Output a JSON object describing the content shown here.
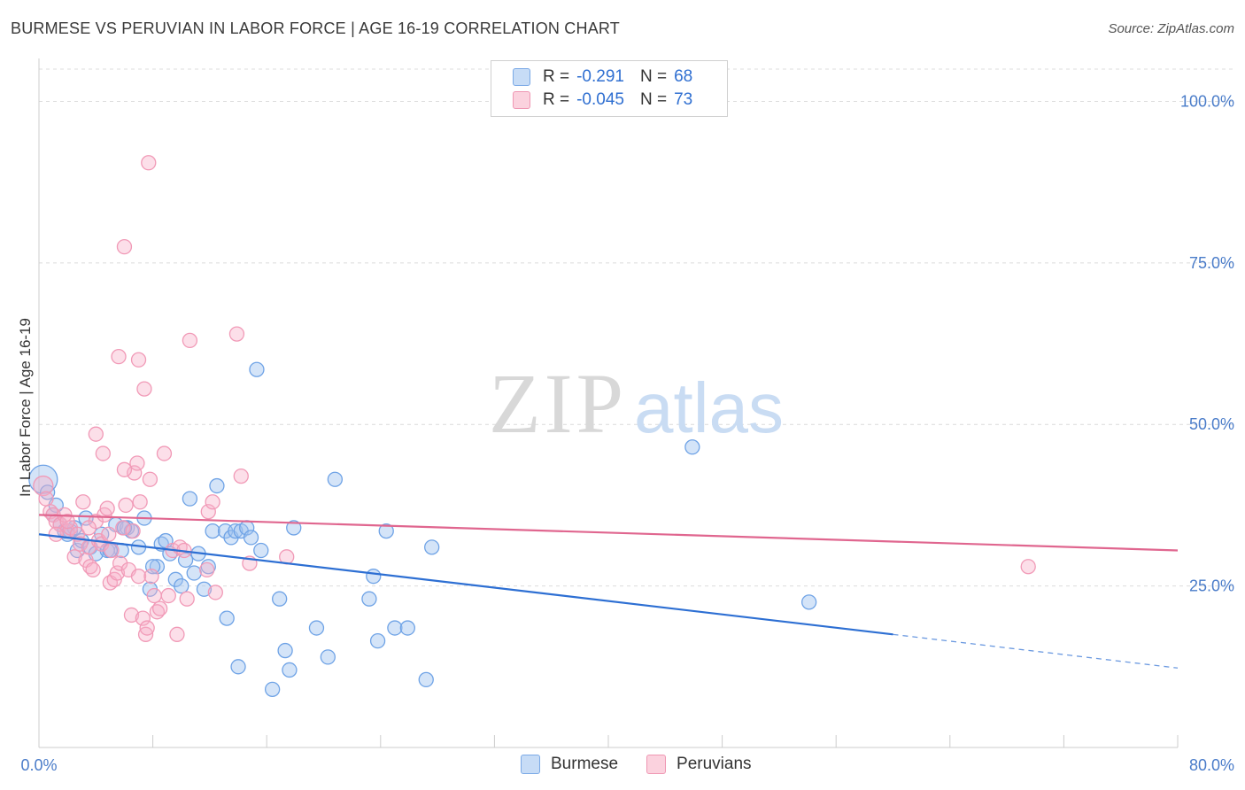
{
  "title": "BURMESE VS PERUVIAN IN LABOR FORCE | AGE 16-19 CORRELATION CHART",
  "source": "Source: ZipAtlas.com",
  "watermark": {
    "zip": "ZIP",
    "atlas": "atlas"
  },
  "legend": {
    "rows": [
      {
        "r_label": "R =",
        "r_value": "-0.291",
        "n_label": "N =",
        "n_value": "68",
        "color": "#a9c8f0"
      },
      {
        "r_label": "R =",
        "r_value": "-0.045",
        "n_label": "N =",
        "n_value": "73",
        "color": "#f7b8cb"
      }
    ]
  },
  "bottom_legend": [
    {
      "label": "Burmese",
      "color": "#a9c8f0"
    },
    {
      "label": "Peruvians",
      "color": "#f7b8cb"
    }
  ],
  "chart_data": {
    "type": "scatter",
    "title": "BURMESE VS PERUVIAN IN LABOR FORCE | AGE 16-19 CORRELATION CHART",
    "xlabel": "",
    "ylabel": "In Labor Force | Age 16-19",
    "xlim": [
      0,
      80
    ],
    "ylim": [
      0,
      105
    ],
    "x_tick_labels": [
      {
        "value": 0,
        "label": "0.0%"
      },
      {
        "value": 80,
        "label": "80.0%"
      }
    ],
    "y_tick_labels": [
      {
        "value": 25,
        "label": "25.0%"
      },
      {
        "value": 50,
        "label": "50.0%"
      },
      {
        "value": 75,
        "label": "75.0%"
      },
      {
        "value": 100,
        "label": "100.0%"
      }
    ],
    "series": [
      {
        "name": "Burmese",
        "color": "#6fa3e6",
        "trend": {
          "x0": 0,
          "y0": 33.0,
          "x1": 60,
          "y1": 17.5,
          "dash_to_x": 80,
          "dash_to_y": 12.3,
          "color": "#2d6fd3"
        },
        "points": [
          [
            0.3,
            41.5
          ],
          [
            0.6,
            39.5
          ],
          [
            1.0,
            36.0
          ],
          [
            1.2,
            37.5
          ],
          [
            1.5,
            34.5
          ],
          [
            1.8,
            33.5
          ],
          [
            2.2,
            33.5
          ],
          [
            2.5,
            34.0
          ],
          [
            2.7,
            30.5
          ],
          [
            3.0,
            32.0
          ],
          [
            3.3,
            35.5
          ],
          [
            3.6,
            31.0
          ],
          [
            4.0,
            30.0
          ],
          [
            4.4,
            33.0
          ],
          [
            4.8,
            30.5
          ],
          [
            5.4,
            34.5
          ],
          [
            5.8,
            30.5
          ],
          [
            6.2,
            34.0
          ],
          [
            6.5,
            33.5
          ],
          [
            7.0,
            31.0
          ],
          [
            7.4,
            35.5
          ],
          [
            7.8,
            24.5
          ],
          [
            8.3,
            28.0
          ],
          [
            8.6,
            31.5
          ],
          [
            8.9,
            32.0
          ],
          [
            9.2,
            30.0
          ],
          [
            9.6,
            26.0
          ],
          [
            10.0,
            25.0
          ],
          [
            10.3,
            29.0
          ],
          [
            10.6,
            38.5
          ],
          [
            10.9,
            27.0
          ],
          [
            11.2,
            30.0
          ],
          [
            11.6,
            24.5
          ],
          [
            11.9,
            28.0
          ],
          [
            12.2,
            33.5
          ],
          [
            12.5,
            40.5
          ],
          [
            13.1,
            33.5
          ],
          [
            13.5,
            32.5
          ],
          [
            13.2,
            20.0
          ],
          [
            13.8,
            33.5
          ],
          [
            14.2,
            33.5
          ],
          [
            14.6,
            34.0
          ],
          [
            14.9,
            32.5
          ],
          [
            15.3,
            58.5
          ],
          [
            15.6,
            30.5
          ],
          [
            16.4,
            9.0
          ],
          [
            16.9,
            23.0
          ],
          [
            17.3,
            15.0
          ],
          [
            17.6,
            12.0
          ],
          [
            17.9,
            34.0
          ],
          [
            19.5,
            18.5
          ],
          [
            20.3,
            14.0
          ],
          [
            20.8,
            41.5
          ],
          [
            23.2,
            23.0
          ],
          [
            23.5,
            26.5
          ],
          [
            23.8,
            16.5
          ],
          [
            24.4,
            33.5
          ],
          [
            25.0,
            18.5
          ],
          [
            25.9,
            18.5
          ],
          [
            27.2,
            10.5
          ],
          [
            27.6,
            31.0
          ],
          [
            14.0,
            12.5
          ],
          [
            8.0,
            28.0
          ],
          [
            6.0,
            34.0
          ],
          [
            5.0,
            30.5
          ],
          [
            45.9,
            46.5
          ],
          [
            54.1,
            22.5
          ],
          [
            2.0,
            33.0
          ]
        ]
      },
      {
        "name": "Peruvians",
        "color": "#f4a3bc",
        "trend": {
          "x0": 0,
          "y0": 36.0,
          "x1": 80,
          "y1": 30.5,
          "color": "#e0668f"
        },
        "points": [
          [
            0.3,
            40.5
          ],
          [
            0.5,
            38.5
          ],
          [
            0.8,
            36.5
          ],
          [
            1.0,
            36.0
          ],
          [
            1.2,
            35.0
          ],
          [
            1.5,
            34.5
          ],
          [
            1.8,
            36.0
          ],
          [
            2.0,
            33.5
          ],
          [
            2.2,
            34.0
          ],
          [
            2.5,
            29.5
          ],
          [
            2.7,
            33.0
          ],
          [
            2.9,
            31.5
          ],
          [
            3.1,
            38.0
          ],
          [
            3.3,
            29.0
          ],
          [
            3.5,
            31.0
          ],
          [
            3.6,
            28.0
          ],
          [
            3.8,
            27.5
          ],
          [
            4.0,
            35.0
          ],
          [
            4.2,
            32.0
          ],
          [
            4.4,
            31.5
          ],
          [
            4.6,
            36.0
          ],
          [
            4.8,
            37.0
          ],
          [
            4.9,
            33.0
          ],
          [
            5.0,
            25.5
          ],
          [
            5.1,
            30.5
          ],
          [
            5.3,
            26.0
          ],
          [
            5.5,
            27.0
          ],
          [
            5.7,
            28.5
          ],
          [
            5.9,
            34.0
          ],
          [
            6.1,
            37.5
          ],
          [
            6.3,
            27.5
          ],
          [
            6.5,
            20.5
          ],
          [
            6.7,
            42.5
          ],
          [
            6.9,
            44.0
          ],
          [
            7.0,
            26.5
          ],
          [
            7.1,
            38.0
          ],
          [
            7.3,
            20.0
          ],
          [
            7.5,
            17.5
          ],
          [
            7.6,
            18.5
          ],
          [
            7.8,
            41.5
          ],
          [
            7.9,
            26.5
          ],
          [
            8.1,
            23.5
          ],
          [
            8.3,
            21.0
          ],
          [
            8.5,
            21.5
          ],
          [
            8.8,
            45.5
          ],
          [
            9.1,
            23.5
          ],
          [
            9.4,
            30.5
          ],
          [
            9.7,
            17.5
          ],
          [
            9.9,
            31.0
          ],
          [
            10.2,
            30.5
          ],
          [
            10.4,
            23.0
          ],
          [
            10.6,
            63.0
          ],
          [
            11.8,
            27.5
          ],
          [
            11.9,
            36.5
          ],
          [
            12.2,
            38.0
          ],
          [
            12.4,
            24.0
          ],
          [
            13.9,
            64.0
          ],
          [
            14.2,
            42.0
          ],
          [
            14.8,
            28.5
          ],
          [
            17.4,
            29.5
          ],
          [
            5.6,
            60.5
          ],
          [
            6.0,
            77.5
          ],
          [
            7.7,
            90.5
          ],
          [
            7.0,
            60.0
          ],
          [
            7.4,
            55.5
          ],
          [
            4.0,
            48.5
          ],
          [
            4.5,
            45.5
          ],
          [
            6.0,
            43.0
          ],
          [
            3.5,
            34.0
          ],
          [
            2.0,
            35.0
          ],
          [
            1.2,
            33.0
          ],
          [
            69.5,
            28.0
          ],
          [
            6.6,
            33.5
          ]
        ]
      }
    ],
    "grid": true
  }
}
